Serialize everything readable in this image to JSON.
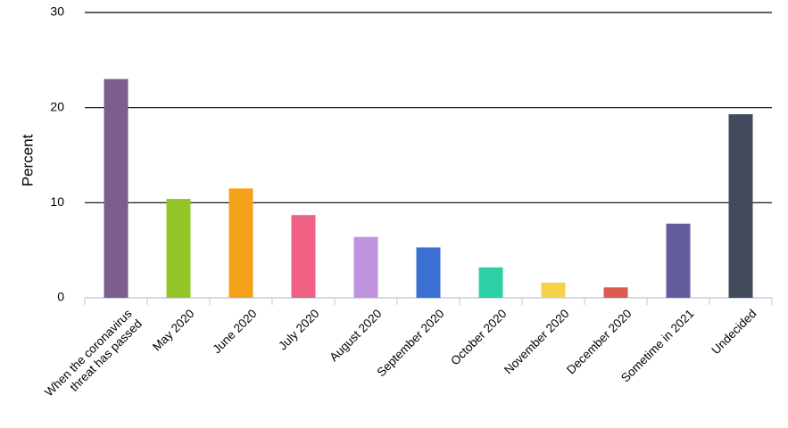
{
  "chart_data": {
    "type": "bar",
    "y_label": "Percent",
    "categories": [
      "When the coronavirus threat has passed",
      "May 2020",
      "June 2020",
      "July 2020",
      "August 2020",
      "September 2020",
      "October 2020",
      "November 2020",
      "December 2020",
      "Sometime in 2021",
      "Undecided"
    ],
    "values": [
      23,
      10.4,
      11.5,
      8.7,
      6.4,
      5.3,
      3.2,
      1.6,
      1.1,
      7.8,
      19.3
    ],
    "colors": [
      "#7b5e8c",
      "#93c527",
      "#f5a21b",
      "#ef6284",
      "#bf93dd",
      "#3b6fd1",
      "#2dcfa4",
      "#f5d24a",
      "#dc5a4d",
      "#625e9e",
      "#434a5c"
    ],
    "ylim": [
      0,
      30
    ],
    "yticks": [
      0,
      10,
      20,
      30
    ],
    "grid": true
  }
}
